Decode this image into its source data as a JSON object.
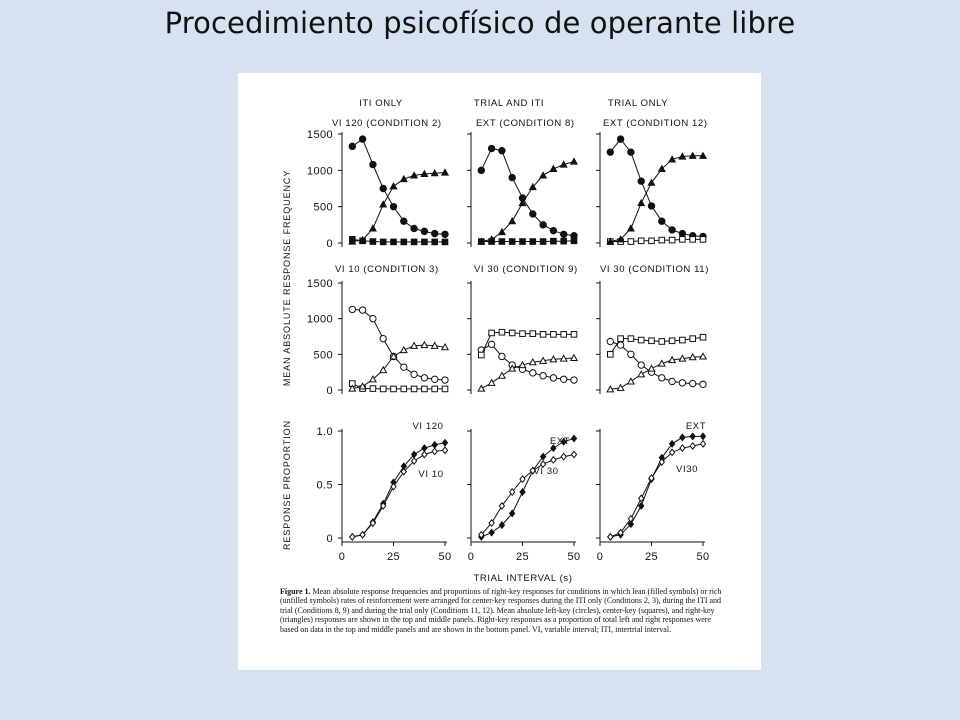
{
  "slide": {
    "title": "Procedimiento psicofísico de operante libre"
  },
  "figure": {
    "panel_titles": [
      [
        "ITI ONLY",
        "VI 120 (CONDITION 2)"
      ],
      [
        "TRIAL AND ITI",
        "EXT (CONDITION 8)"
      ],
      [
        "TRIAL ONLY",
        "EXT (CONDITION 12)"
      ],
      [
        "VI 10 (CONDITION 3)"
      ],
      [
        "VI 30 (CONDITION 9)"
      ],
      [
        "VI 30 (CONDITION 11)"
      ]
    ],
    "ylabel_top": "MEAN ABSOLUTE RESPONSE FREQUENCY",
    "ylabel_bottom": "RESPONSE PROPORTION",
    "xlabel": "TRIAL INTERVAL (s)",
    "x_ticks": [
      "0",
      "25",
      "50"
    ],
    "y_ticks_freq": [
      "1500",
      "1000",
      "500",
      "0"
    ],
    "y_ticks_prop": [
      "1.0",
      "0.5",
      "0"
    ],
    "prop_labels": [
      [
        "VI 120",
        "VI 10"
      ],
      [
        "EXT",
        "VI 30"
      ],
      [
        "EXT",
        "VI30"
      ]
    ],
    "caption_lead": "Figure 1.",
    "caption_text": " Mean absolute response frequencies and proportions of right-key responses for conditions in which lean (filled symbols) or rich (unfilled symbols) rates of reinforcement were arranged for center-key responses during the ITI only (Conditions 2, 3), during the ITI and trial (Conditions 8, 9) and during the trial only (Conditions 11, 12). Mean absolute left-key (circles), center-key (squares), and right-key (triangles) responses are shown in the top and middle panels. Right-key responses as a proportion of total left and right responses were based on data in the top and middle panels and are shown in the bottom panel. VI, variable interval; ITI, intertrial interval."
  },
  "chart_data": [
    {
      "type": "line",
      "title": "ITI ONLY / VI 120 (CONDITION 2)",
      "ylim": [
        0,
        1500
      ],
      "x": [
        5,
        10,
        15,
        20,
        25,
        30,
        35,
        40,
        45,
        50
      ],
      "series": [
        {
          "marker": "filled-circle",
          "values": [
            1330,
            1430,
            1080,
            750,
            500,
            300,
            200,
            160,
            130,
            120
          ]
        },
        {
          "marker": "filled-square",
          "values": [
            50,
            30,
            20,
            15,
            15,
            15,
            15,
            15,
            15,
            15
          ]
        },
        {
          "marker": "filled-triangle",
          "values": [
            20,
            40,
            200,
            530,
            780,
            880,
            930,
            950,
            960,
            970
          ]
        }
      ]
    },
    {
      "type": "line",
      "title": "TRIAL AND ITI / EXT (CONDITION 8)",
      "ylim": [
        0,
        1500
      ],
      "x": [
        5,
        10,
        15,
        20,
        25,
        30,
        35,
        40,
        45,
        50
      ],
      "series": [
        {
          "marker": "filled-circle",
          "values": [
            1000,
            1300,
            1270,
            900,
            620,
            400,
            250,
            170,
            120,
            100
          ]
        },
        {
          "marker": "filled-square",
          "values": [
            20,
            20,
            20,
            20,
            20,
            20,
            20,
            25,
            25,
            30
          ]
        },
        {
          "marker": "filled-triangle",
          "values": [
            20,
            50,
            150,
            300,
            550,
            770,
            930,
            1020,
            1080,
            1120
          ]
        }
      ]
    },
    {
      "type": "line",
      "title": "TRIAL ONLY / EXT (CONDITION 12)",
      "ylim": [
        0,
        1500
      ],
      "x": [
        5,
        10,
        15,
        20,
        25,
        30,
        35,
        40,
        45,
        50
      ],
      "series": [
        {
          "marker": "filled-circle",
          "values": [
            1250,
            1430,
            1250,
            850,
            510,
            300,
            180,
            130,
            100,
            90
          ]
        },
        {
          "marker": "unfilled-square",
          "values": [
            20,
            20,
            20,
            30,
            30,
            40,
            40,
            50,
            50,
            50
          ]
        },
        {
          "marker": "filled-triangle",
          "values": [
            20,
            50,
            200,
            550,
            830,
            1020,
            1150,
            1190,
            1200,
            1200
          ]
        }
      ]
    },
    {
      "type": "line",
      "title": "VI 10 (CONDITION 3)",
      "ylim": [
        0,
        1500
      ],
      "x": [
        5,
        10,
        15,
        20,
        25,
        30,
        35,
        40,
        45,
        50
      ],
      "series": [
        {
          "marker": "unfilled-circle",
          "values": [
            1130,
            1120,
            1000,
            720,
            470,
            320,
            220,
            170,
            150,
            140
          ]
        },
        {
          "marker": "unfilled-square",
          "values": [
            90,
            20,
            20,
            15,
            15,
            15,
            15,
            15,
            15,
            15
          ]
        },
        {
          "marker": "unfilled-triangle",
          "values": [
            20,
            50,
            150,
            280,
            470,
            560,
            620,
            630,
            620,
            600
          ]
        }
      ]
    },
    {
      "type": "line",
      "title": "VI 30 (CONDITION 9)",
      "ylim": [
        0,
        1500
      ],
      "x": [
        5,
        10,
        15,
        20,
        25,
        30,
        35,
        40,
        45,
        50
      ],
      "series": [
        {
          "marker": "unfilled-circle",
          "values": [
            560,
            640,
            470,
            350,
            290,
            240,
            200,
            170,
            150,
            140
          ]
        },
        {
          "marker": "unfilled-square",
          "values": [
            490,
            800,
            810,
            800,
            790,
            790,
            780,
            780,
            780,
            780
          ]
        },
        {
          "marker": "unfilled-triangle",
          "values": [
            20,
            100,
            200,
            300,
            350,
            390,
            410,
            430,
            440,
            450
          ]
        }
      ]
    },
    {
      "type": "line",
      "title": "VI 30 (CONDITION 11)",
      "ylim": [
        0,
        1500
      ],
      "x": [
        5,
        10,
        15,
        20,
        25,
        30,
        35,
        40,
        45,
        50
      ],
      "series": [
        {
          "marker": "unfilled-circle",
          "values": [
            680,
            630,
            500,
            350,
            250,
            170,
            120,
            100,
            90,
            80
          ]
        },
        {
          "marker": "unfilled-square",
          "values": [
            500,
            720,
            720,
            700,
            690,
            680,
            690,
            700,
            720,
            740
          ]
        },
        {
          "marker": "unfilled-triangle",
          "values": [
            10,
            30,
            120,
            220,
            300,
            370,
            420,
            440,
            460,
            470
          ]
        }
      ]
    },
    {
      "type": "line",
      "ylim": [
        0,
        1
      ],
      "x": [
        5,
        10,
        15,
        20,
        25,
        30,
        35,
        40,
        45,
        50
      ],
      "series": [
        {
          "name": "VI 120",
          "marker": "filled-diamond",
          "values": [
            0.01,
            0.03,
            0.15,
            0.32,
            0.52,
            0.67,
            0.78,
            0.84,
            0.87,
            0.89
          ]
        },
        {
          "name": "VI 10",
          "marker": "unfilled-diamond",
          "values": [
            0.01,
            0.03,
            0.14,
            0.3,
            0.48,
            0.62,
            0.72,
            0.78,
            0.81,
            0.82
          ]
        }
      ]
    },
    {
      "type": "line",
      "ylim": [
        0,
        1
      ],
      "x": [
        5,
        10,
        15,
        20,
        25,
        30,
        35,
        40,
        45,
        50
      ],
      "series": [
        {
          "name": "EXT",
          "marker": "filled-diamond",
          "values": [
            0.01,
            0.05,
            0.12,
            0.23,
            0.43,
            0.63,
            0.76,
            0.84,
            0.9,
            0.93
          ]
        },
        {
          "name": "VI 30",
          "marker": "unfilled-diamond",
          "values": [
            0.03,
            0.14,
            0.3,
            0.43,
            0.55,
            0.63,
            0.69,
            0.73,
            0.76,
            0.78
          ]
        }
      ]
    },
    {
      "type": "line",
      "ylim": [
        0,
        1
      ],
      "x": [
        5,
        10,
        15,
        20,
        25,
        30,
        35,
        40,
        45,
        50
      ],
      "series": [
        {
          "name": "EXT",
          "marker": "filled-diamond",
          "values": [
            0.01,
            0.03,
            0.13,
            0.3,
            0.55,
            0.75,
            0.88,
            0.94,
            0.95,
            0.95
          ]
        },
        {
          "name": "VI30",
          "marker": "unfilled-diamond",
          "values": [
            0.01,
            0.05,
            0.18,
            0.37,
            0.56,
            0.71,
            0.8,
            0.84,
            0.86,
            0.88
          ]
        }
      ]
    }
  ]
}
